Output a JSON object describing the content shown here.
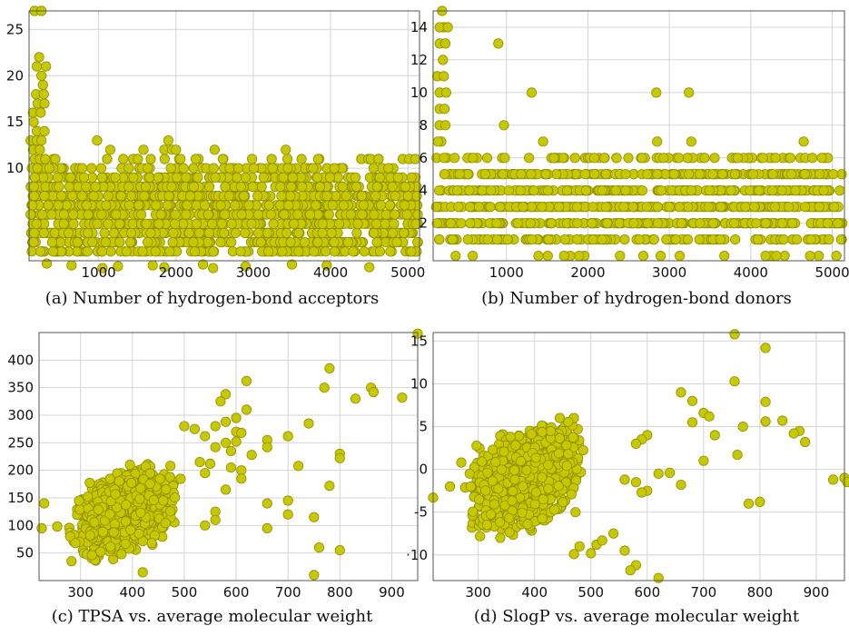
{
  "chart_data": [
    {
      "id": "a",
      "type": "scatter",
      "caption": "(a) Number of hydrogen-bond acceptors",
      "xlim": [
        100,
        5150
      ],
      "ylim": [
        0,
        27
      ],
      "xticks": [
        1000,
        2000,
        3000,
        4000,
        5000
      ],
      "yticks": [
        10,
        15,
        20,
        25
      ],
      "grid": true,
      "point_color": "#c8c800",
      "bands": [
        {
          "y": 1,
          "count": 110
        },
        {
          "y": 2,
          "count": 130
        },
        {
          "y": 3,
          "count": 140
        },
        {
          "y": 4,
          "count": 150
        },
        {
          "y": 5,
          "count": 150
        },
        {
          "y": 6,
          "count": 150
        },
        {
          "y": 7,
          "count": 150
        },
        {
          "y": 8,
          "count": 140
        },
        {
          "y": 9,
          "count": 120
        },
        {
          "y": 10,
          "count": 70
        },
        {
          "y": 11,
          "count": 30
        }
      ],
      "points": [
        [
          170,
          27
        ],
        [
          260,
          27
        ],
        [
          230,
          22
        ],
        [
          200,
          21
        ],
        [
          320,
          21
        ],
        [
          260,
          20
        ],
        [
          190,
          18
        ],
        [
          290,
          18
        ],
        [
          280,
          19
        ],
        [
          210,
          17
        ],
        [
          300,
          17
        ],
        [
          150,
          16
        ],
        [
          250,
          16
        ],
        [
          160,
          15
        ],
        [
          200,
          14
        ],
        [
          300,
          14
        ],
        [
          120,
          13
        ],
        [
          200,
          13
        ],
        [
          260,
          13
        ],
        [
          150,
          12
        ],
        [
          240,
          12
        ],
        [
          980,
          13
        ],
        [
          1150,
          12
        ],
        [
          1580,
          12
        ],
        [
          1850,
          12
        ],
        [
          1900,
          13
        ],
        [
          1950,
          12
        ],
        [
          2000,
          12
        ],
        [
          2500,
          12
        ],
        [
          3420,
          12
        ],
        [
          4520,
          11
        ],
        [
          4620,
          11
        ],
        [
          330,
          -0.3
        ],
        [
          650,
          -0.5
        ],
        [
          1050,
          -0.8
        ],
        [
          1250,
          -0.6
        ],
        [
          1700,
          -0.5
        ],
        [
          1850,
          -0.7
        ],
        [
          2350,
          -0.4
        ],
        [
          2480,
          -0.8
        ],
        [
          2900,
          -0.6
        ],
        [
          3500,
          -0.4
        ],
        [
          3950,
          -0.5
        ],
        [
          4500,
          -0.7
        ]
      ]
    },
    {
      "id": "b",
      "type": "scatter",
      "caption": "(b) Number of hydrogen-bond donors",
      "xlim": [
        100,
        5150
      ],
      "ylim": [
        -0.3,
        15
      ],
      "xticks": [
        1000,
        2000,
        3000,
        4000,
        5000
      ],
      "yticks": [
        2,
        4,
        6,
        8,
        10,
        12,
        14
      ],
      "grid": true,
      "point_color": "#c8c800",
      "bands": [
        {
          "y": 0,
          "count": 20
        },
        {
          "y": 1,
          "count": 120
        },
        {
          "y": 2,
          "count": 170
        },
        {
          "y": 3,
          "count": 190
        },
        {
          "y": 4,
          "count": 180
        },
        {
          "y": 5,
          "count": 160
        },
        {
          "y": 6,
          "count": 70
        }
      ],
      "points": [
        [
          210,
          15
        ],
        [
          230,
          14
        ],
        [
          180,
          14
        ],
        [
          280,
          14
        ],
        [
          180,
          13
        ],
        [
          250,
          13
        ],
        [
          900,
          13
        ],
        [
          220,
          12
        ],
        [
          150,
          11
        ],
        [
          230,
          11
        ],
        [
          180,
          10
        ],
        [
          260,
          10
        ],
        [
          1310,
          10
        ],
        [
          2840,
          10
        ],
        [
          3240,
          10
        ],
        [
          180,
          9
        ],
        [
          240,
          9
        ],
        [
          180,
          8
        ],
        [
          250,
          8
        ],
        [
          970,
          8
        ],
        [
          200,
          7
        ],
        [
          160,
          7
        ],
        [
          1450,
          7
        ],
        [
          2850,
          7
        ],
        [
          3270,
          7
        ],
        [
          4650,
          7
        ]
      ]
    },
    {
      "id": "c",
      "type": "scatter",
      "caption": "(c) TPSA vs. average molecular weight",
      "xlim": [
        220,
        950
      ],
      "ylim": [
        0,
        450
      ],
      "xticks": [
        300,
        400,
        500,
        600,
        700,
        800,
        900
      ],
      "yticks": [
        50,
        100,
        150,
        200,
        250,
        300,
        350,
        400
      ],
      "grid": true,
      "point_color": "#c8c800",
      "cluster": {
        "x": [
          270,
          505
        ],
        "y": [
          35,
          215
        ],
        "count": 1500
      },
      "points": [
        [
          950,
          448
        ],
        [
          780,
          385
        ],
        [
          620,
          362
        ],
        [
          860,
          350
        ],
        [
          770,
          350
        ],
        [
          865,
          342
        ],
        [
          580,
          338
        ],
        [
          920,
          332
        ],
        [
          830,
          330
        ],
        [
          570,
          325
        ],
        [
          620,
          310
        ],
        [
          600,
          295
        ],
        [
          580,
          288
        ],
        [
          560,
          280
        ],
        [
          500,
          280
        ],
        [
          520,
          275
        ],
        [
          600,
          270
        ],
        [
          610,
          268
        ],
        [
          540,
          262
        ],
        [
          660,
          255
        ],
        [
          600,
          252
        ],
        [
          700,
          262
        ],
        [
          740,
          285
        ],
        [
          580,
          250
        ],
        [
          660,
          242
        ],
        [
          560,
          242
        ],
        [
          590,
          235
        ],
        [
          630,
          228
        ],
        [
          800,
          230
        ],
        [
          800,
          222
        ],
        [
          530,
          215
        ],
        [
          550,
          212
        ],
        [
          720,
          208
        ],
        [
          590,
          205
        ],
        [
          610,
          200
        ],
        [
          540,
          195
        ],
        [
          610,
          185
        ],
        [
          780,
          172
        ],
        [
          580,
          165
        ],
        [
          700,
          145
        ],
        [
          660,
          140
        ],
        [
          560,
          125
        ],
        [
          700,
          120
        ],
        [
          560,
          110
        ],
        [
          750,
          115
        ],
        [
          540,
          100
        ],
        [
          660,
          95
        ],
        [
          800,
          55
        ],
        [
          760,
          60
        ],
        [
          750,
          10
        ],
        [
          420,
          15
        ],
        [
          230,
          140
        ],
        [
          255,
          98
        ],
        [
          225,
          95
        ],
        [
          280,
          80
        ],
        [
          290,
          68
        ]
      ]
    },
    {
      "id": "d",
      "type": "scatter",
      "caption": "(d) SlogP vs. average molecular weight",
      "xlim": [
        220,
        950
      ],
      "ylim": [
        -13,
        16
      ],
      "xticks": [
        300,
        400,
        500,
        600,
        700,
        800,
        900
      ],
      "yticks": [
        -10,
        -5,
        0,
        5,
        10,
        15
      ],
      "ytick_labels": [
        "·10",
        "-5",
        "0",
        "5",
        "10",
        "15"
      ],
      "grid": true,
      "point_color": "#c8c800",
      "cluster": {
        "x": [
          270,
          500
        ],
        "y": [
          -8,
          6
        ],
        "count": 1500
      },
      "points": [
        [
          755,
          15.8
        ],
        [
          810,
          14.2
        ],
        [
          755,
          10.3
        ],
        [
          660,
          9
        ],
        [
          680,
          8
        ],
        [
          810,
          7.9
        ],
        [
          700,
          6.6
        ],
        [
          710,
          6.2
        ],
        [
          810,
          5.6
        ],
        [
          840,
          5.7
        ],
        [
          770,
          5
        ],
        [
          870,
          4.5
        ],
        [
          860,
          4.2
        ],
        [
          880,
          3.2
        ],
        [
          720,
          4
        ],
        [
          600,
          4
        ],
        [
          590,
          3.5
        ],
        [
          580,
          3
        ],
        [
          680,
          5.5
        ],
        [
          760,
          1.7
        ],
        [
          700,
          1
        ],
        [
          620,
          -0.5
        ],
        [
          640,
          -0.4
        ],
        [
          560,
          -1.2
        ],
        [
          580,
          -1.5
        ],
        [
          600,
          -2.5
        ],
        [
          590,
          -2.7
        ],
        [
          660,
          -1.8
        ],
        [
          780,
          -4
        ],
        [
          800,
          -3.8
        ],
        [
          930,
          -1.2
        ],
        [
          950,
          -1
        ],
        [
          955,
          -1.5
        ],
        [
          540,
          -7.5
        ],
        [
          560,
          -9.5
        ],
        [
          580,
          -11.2
        ],
        [
          570,
          -11.8
        ],
        [
          620,
          -12.7
        ],
        [
          510,
          -8.8
        ],
        [
          520,
          -8.3
        ],
        [
          500,
          -9.8
        ],
        [
          480,
          -9
        ],
        [
          470,
          -9.9
        ],
        [
          220,
          -3.3
        ],
        [
          250,
          -2
        ],
        [
          270,
          0.8
        ],
        [
          285,
          -0.5
        ]
      ]
    }
  ]
}
